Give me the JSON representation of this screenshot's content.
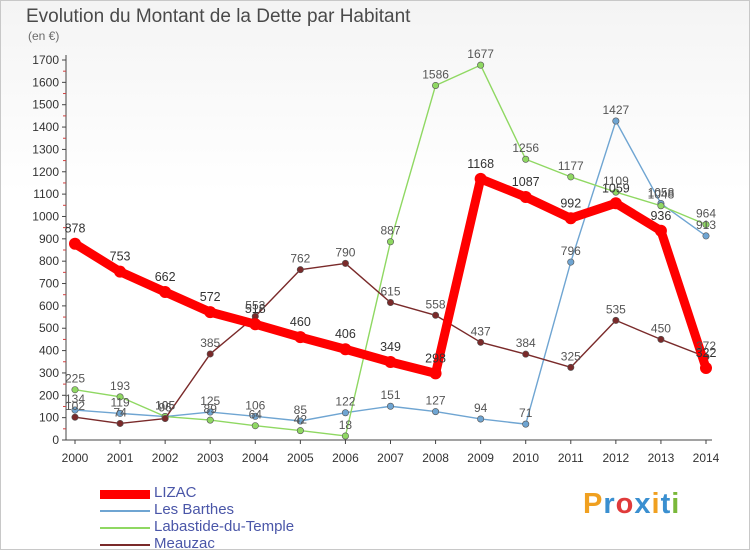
{
  "title": "Evolution du Montant de la Dette par Habitant",
  "unit_label": "(en €)",
  "logo": {
    "text": "Proxiti",
    "colors": [
      "#f0a020",
      "#3a8fd0",
      "#e03a3a",
      "#3a8fd0",
      "#f0a020",
      "#3a8fd0",
      "#7ab83a"
    ]
  },
  "chart_data": {
    "type": "line",
    "x": [
      "2000",
      "2001",
      "2002",
      "2003",
      "2004",
      "2005",
      "2006",
      "2007",
      "2008",
      "2009",
      "2010",
      "2011",
      "2012",
      "2013",
      "2014"
    ],
    "ylim": [
      0,
      1700
    ],
    "yticks": [
      0,
      100,
      200,
      300,
      400,
      500,
      600,
      700,
      800,
      900,
      1000,
      1100,
      1200,
      1300,
      1400,
      1500,
      1600,
      1700
    ],
    "grid": false,
    "legend_position": "bottom-left",
    "series": [
      {
        "name": "LIZAC",
        "color": "#ff0000",
        "main": true,
        "values": [
          878,
          753,
          662,
          572,
          518,
          460,
          406,
          349,
          298,
          1168,
          1087,
          992,
          1059,
          936,
          322
        ],
        "labels": [
          "878",
          "753",
          "662",
          "572",
          "518",
          "460",
          "406",
          "349",
          "298",
          "1168",
          "1087",
          "992",
          "1059",
          "936",
          "322"
        ]
      },
      {
        "name": "Les Barthes",
        "color": "#6fa5d2",
        "values": [
          134,
          119,
          105,
          125,
          106,
          85,
          122,
          151,
          127,
          94,
          71,
          796,
          1427,
          1058,
          913
        ],
        "labels": [
          "134",
          "119",
          "105",
          "125",
          "106",
          "85",
          "122",
          "151",
          "127",
          "94",
          "71",
          "796",
          "1427",
          "1058",
          "913"
        ]
      },
      {
        "name": "Labastide-du-Temple",
        "color": "#8fd862",
        "values": [
          225,
          193,
          105,
          89,
          64,
          42,
          18,
          887,
          1586,
          1677,
          1256,
          1177,
          1109,
          1048,
          964
        ],
        "labels": [
          "225",
          "193",
          "105",
          "89",
          "64",
          "42",
          "18",
          "887",
          "1586",
          "1677",
          "1256",
          "1177",
          "1109",
          "1048",
          "964"
        ]
      },
      {
        "name": "Meauzac",
        "color": "#7a2a2a",
        "values": [
          102,
          74,
          96,
          385,
          553,
          762,
          790,
          615,
          558,
          437,
          384,
          325,
          535,
          450,
          372
        ],
        "labels": [
          "102",
          "74",
          "96",
          "385",
          "553",
          "762",
          "790",
          "615",
          "558",
          "437",
          "384",
          "325",
          "535",
          "450",
          "372"
        ]
      }
    ]
  }
}
